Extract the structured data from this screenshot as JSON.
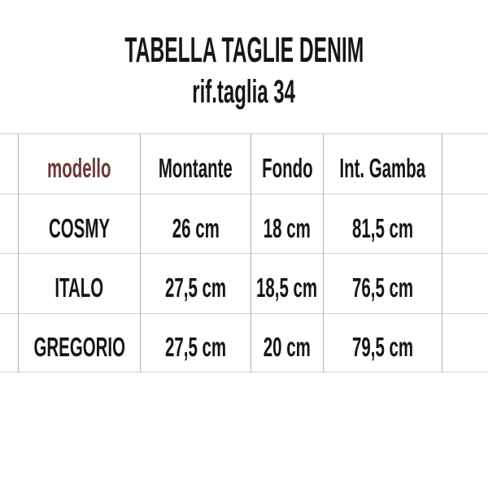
{
  "colors": {
    "background": "#ffffff",
    "text": "#161616",
    "model_header": "#703737",
    "grid_horizontal": "#d0d0d0",
    "grid_vertical": "#b2b2b2"
  },
  "header": {
    "title": "TABELLA TAGLIE DENIM",
    "subtitle": "rif.taglia 34"
  },
  "chart_data": {
    "type": "table",
    "title": "TABELLA TAGLIE DENIM",
    "subtitle": "rif.taglia 34",
    "reference_size": "34",
    "units": "cm",
    "columns": [
      "modello",
      "Montante",
      "Fondo",
      "Int. Gamba"
    ],
    "rows": [
      [
        "COSMY",
        "26 cm",
        "18 cm",
        "81,5 cm"
      ],
      [
        "ITALO",
        "27,5 cm",
        "18,5 cm",
        "76,5 cm"
      ],
      [
        "GREGORIO",
        "27,5 cm",
        "20 cm",
        "79,5 cm"
      ]
    ]
  }
}
